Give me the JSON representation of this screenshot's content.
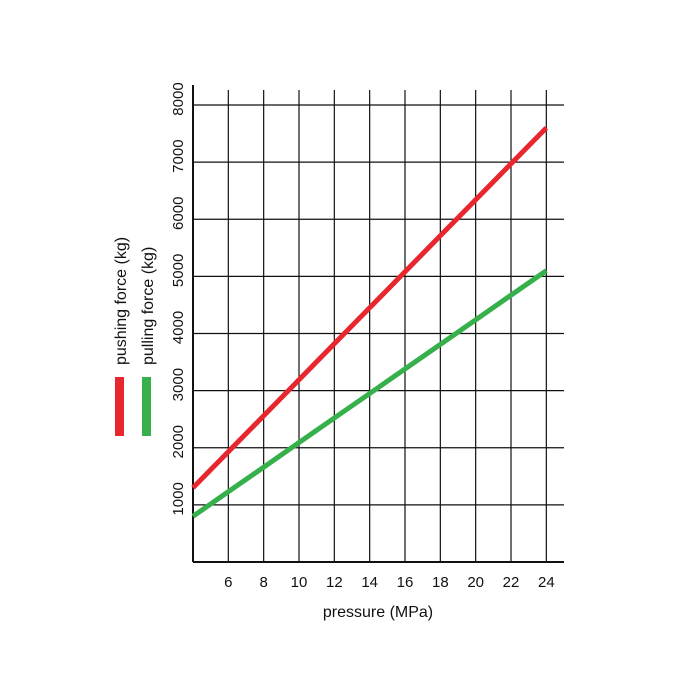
{
  "chart_data": {
    "type": "line",
    "xlabel": "pressure (MPa)",
    "ylabel": "",
    "xlim": [
      4,
      25
    ],
    "ylim": [
      0,
      8000
    ],
    "x_ticks": [
      6,
      8,
      10,
      12,
      14,
      16,
      18,
      20,
      22,
      24
    ],
    "y_ticks": [
      1000,
      2000,
      3000,
      4000,
      5000,
      6000,
      7000,
      8000
    ],
    "grid": true,
    "legend_position": "left, rotated vertical",
    "series": [
      {
        "name": "pushing force (kg)",
        "color": "#e8262e",
        "x": [
          4,
          6,
          8,
          10,
          12,
          14,
          16,
          18,
          20,
          22,
          24
        ],
        "y": [
          1300,
          1930,
          2560,
          3190,
          3820,
          4450,
          5080,
          5710,
          6340,
          6970,
          7600
        ]
      },
      {
        "name": "pulling force (kg)",
        "color": "#35b04a",
        "x": [
          4,
          6,
          8,
          10,
          12,
          14,
          16,
          18,
          20,
          22,
          24
        ],
        "y": [
          800,
          1230,
          1660,
          2090,
          2520,
          2950,
          3380,
          3810,
          4240,
          4670,
          5100
        ]
      }
    ]
  }
}
